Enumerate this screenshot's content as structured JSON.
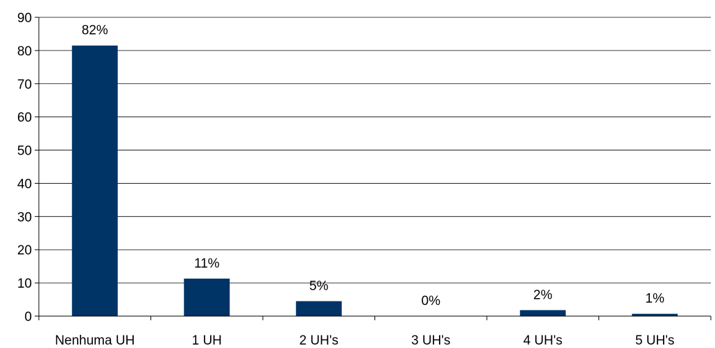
{
  "chart_data": {
    "type": "bar",
    "categories": [
      "Nenhuma UH",
      "1 UH",
      "2 UH's",
      "3 UH's",
      "4 UH's",
      "5 UH's"
    ],
    "values": [
      81.5,
      11.3,
      4.5,
      0,
      1.8,
      0.7
    ],
    "data_labels": [
      "82%",
      "11%",
      "5%",
      "0%",
      "2%",
      "1%"
    ],
    "yticks": [
      "0",
      "10",
      "20",
      "30",
      "40",
      "50",
      "60",
      "70",
      "80",
      "90"
    ],
    "ylim": [
      0,
      90
    ],
    "grid": true,
    "bar_color": "#003366",
    "title": "",
    "xlabel": "",
    "ylabel": ""
  }
}
